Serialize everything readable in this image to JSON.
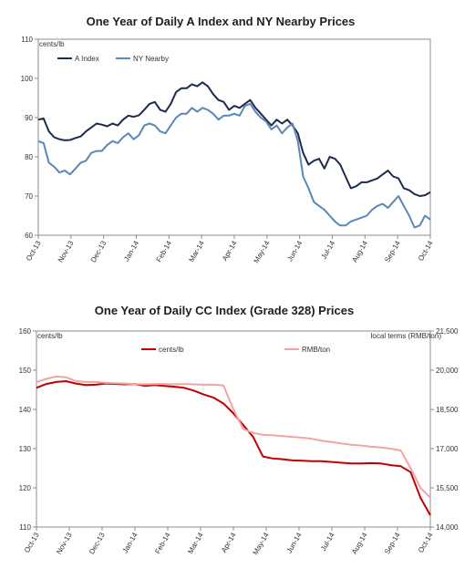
{
  "chart_data": [
    {
      "type": "line",
      "title": "One Year of Daily A Index and NY Nearby Prices",
      "ylabel": "cents/lb",
      "ylim": [
        60,
        110
      ],
      "yticks": [
        60,
        70,
        80,
        90,
        100,
        110
      ],
      "xticklabels": [
        "Oct-13",
        "Nov-13",
        "Dec-13",
        "Jan-14",
        "Feb-14",
        "Mar-14",
        "Apr-14",
        "May-14",
        "Jun-14",
        "Jul-14",
        "Aug-14",
        "Sep-14",
        "Oct-14"
      ],
      "grid": false,
      "legend_position": "top-left",
      "series": [
        {
          "name": "A Index",
          "color": "#1f2a4f",
          "values": [
            89.5,
            89.8,
            86.5,
            85.0,
            84.5,
            84.2,
            84.3,
            84.8,
            85.2,
            86.5,
            87.5,
            88.5,
            88.2,
            87.8,
            88.5,
            88.0,
            89.5,
            90.5,
            90.2,
            90.6,
            92.0,
            93.5,
            94.0,
            92.0,
            91.5,
            93.5,
            96.5,
            97.5,
            97.5,
            98.5,
            98.0,
            99.0,
            98.0,
            96.0,
            94.5,
            94.0,
            92.0,
            93.0,
            92.5,
            93.5,
            94.5,
            92.5,
            91.0,
            89.5,
            88.0,
            89.5,
            88.5,
            89.5,
            88.0,
            86.0,
            81.0,
            78.0,
            79.0,
            79.5,
            77.0,
            80.0,
            79.5,
            78.0,
            75.0,
            72.0,
            72.5,
            73.5,
            73.5,
            74.0,
            74.5,
            75.5,
            76.5,
            75.0,
            74.5,
            72.0,
            71.5,
            70.5,
            70.0,
            70.2,
            71.0
          ]
        },
        {
          "name": "NY Nearby",
          "color": "#5b87b7",
          "values": [
            84.0,
            83.5,
            78.5,
            77.5,
            76.0,
            76.5,
            75.5,
            77.0,
            78.5,
            79.0,
            81.0,
            81.5,
            81.5,
            83.0,
            84.0,
            83.5,
            85.0,
            86.0,
            84.5,
            85.5,
            88.0,
            88.5,
            88.0,
            86.5,
            86.0,
            88.0,
            90.0,
            91.0,
            91.0,
            92.5,
            91.5,
            92.5,
            92.0,
            91.0,
            89.5,
            90.5,
            90.5,
            91.0,
            90.5,
            93.0,
            93.5,
            91.5,
            90.0,
            89.0,
            87.0,
            88.0,
            86.0,
            87.5,
            88.5,
            84.0,
            75.0,
            72.0,
            68.5,
            67.5,
            66.5,
            65.0,
            63.5,
            62.5,
            62.5,
            63.5,
            64.0,
            64.5,
            65.0,
            66.5,
            67.5,
            68.0,
            67.0,
            68.5,
            70.0,
            67.5,
            65.0,
            62.0,
            62.5,
            65.0,
            64.0
          ]
        }
      ]
    },
    {
      "type": "line",
      "title": "One Year of Daily CC Index (Grade 328) Prices",
      "ylabel": "cents/lb",
      "y2label": "local terms (RMB/ton)",
      "ylim": [
        110,
        160
      ],
      "yticks": [
        110,
        120,
        130,
        140,
        150,
        160
      ],
      "y2lim": [
        14000,
        21500
      ],
      "y2ticks": [
        "14,000",
        "15,500",
        "17,000",
        "18,500",
        "20,000",
        "21,500"
      ],
      "xticklabels": [
        "Oct-13",
        "Nov-13",
        "Dec-13",
        "Jan-14",
        "Feb-14",
        "Mar-14",
        "Apr-14",
        "May-14",
        "Jun-14",
        "Jul-14",
        "Aug-14",
        "Sep-14",
        "Oct-14"
      ],
      "grid": false,
      "legend_position": "top-center",
      "series": [
        {
          "name": "cents/lb",
          "color": "#c00000",
          "axis": "left",
          "values": [
            145.5,
            146.5,
            147.0,
            147.2,
            146.6,
            146.2,
            146.3,
            146.6,
            146.5,
            146.4,
            146.5,
            146.0,
            146.2,
            146.0,
            145.8,
            145.5,
            144.8,
            143.8,
            143.0,
            141.5,
            139.0,
            136.0,
            133.0,
            128.0,
            127.5,
            127.3,
            127.0,
            126.9,
            126.8,
            126.8,
            126.6,
            126.4,
            126.2,
            126.2,
            126.3,
            126.2,
            125.8,
            125.5,
            124.0,
            117.5,
            113.0
          ]
        },
        {
          "name": "RMB/ton",
          "color": "#f4a3a3",
          "axis": "right",
          "values": [
            147.0,
            147.8,
            148.4,
            148.2,
            147.2,
            147.0,
            147.0,
            146.8,
            146.7,
            146.6,
            146.5,
            146.4,
            146.5,
            146.5,
            146.4,
            146.5,
            146.4,
            146.3,
            146.3,
            146.1,
            140.0,
            135.0,
            134.0,
            133.5,
            133.4,
            133.2,
            133.0,
            132.8,
            132.5,
            132.0,
            131.7,
            131.3,
            131.0,
            130.8,
            130.5,
            130.3,
            130.0,
            129.5,
            125.0,
            120.0,
            117.5
          ]
        }
      ]
    }
  ]
}
